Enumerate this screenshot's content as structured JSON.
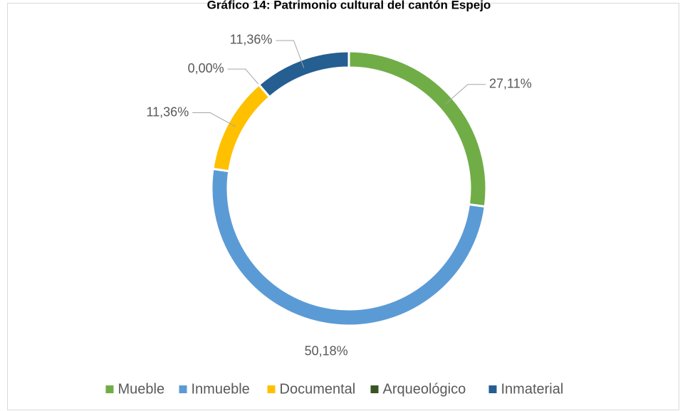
{
  "chart_data": {
    "type": "donut",
    "title": "Gráfico 14: Patrimonio cultural del cantón Espejo",
    "categories": [
      "Mueble",
      "Inmueble",
      "Documental",
      "Arqueológico",
      "Inmaterial"
    ],
    "values": [
      27.11,
      50.18,
      11.36,
      0.0,
      11.36
    ],
    "value_labels": [
      "27,11%",
      "50,18%",
      "11,36%",
      "0,00%",
      "11,36%"
    ],
    "colors": [
      "#70ad47",
      "#5b9bd5",
      "#ffc000",
      "#375623",
      "#255e91"
    ],
    "legend": "bottom"
  }
}
